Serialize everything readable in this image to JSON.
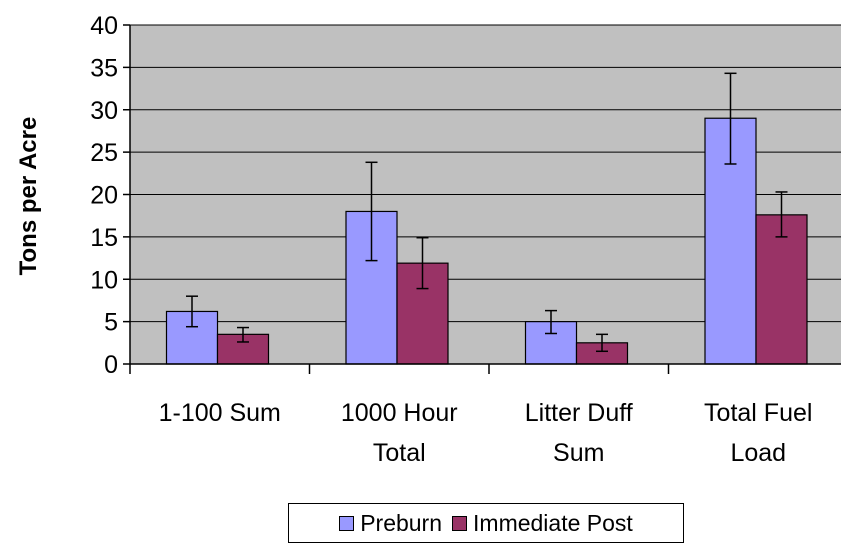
{
  "chart_data": {
    "type": "bar",
    "ylabel": "Tons per Acre",
    "ylim": [
      0,
      40
    ],
    "yticks": [
      0,
      5,
      10,
      15,
      20,
      25,
      30,
      35,
      40
    ],
    "categories": [
      [
        "1-100 Sum"
      ],
      [
        "1000 Hour",
        "Total"
      ],
      [
        "Litter Duff",
        "Sum"
      ],
      [
        "Total Fuel",
        "Load"
      ]
    ],
    "series": [
      {
        "name": "Preburn",
        "color": "#9999ff",
        "values": [
          6.2,
          18.0,
          5.0,
          29.0
        ],
        "error_low": [
          4.4,
          12.2,
          3.6,
          23.6
        ],
        "error_high": [
          8.0,
          23.8,
          6.3,
          34.3
        ]
      },
      {
        "name": "Immediate Post",
        "color": "#993366",
        "values": [
          3.5,
          11.9,
          2.5,
          17.6
        ],
        "error_low": [
          2.6,
          8.9,
          1.5,
          15.0
        ],
        "error_high": [
          4.3,
          14.9,
          3.5,
          20.3
        ]
      }
    ],
    "plot_background": "#c0c0c0",
    "grid": true,
    "legend_position": "bottom"
  }
}
